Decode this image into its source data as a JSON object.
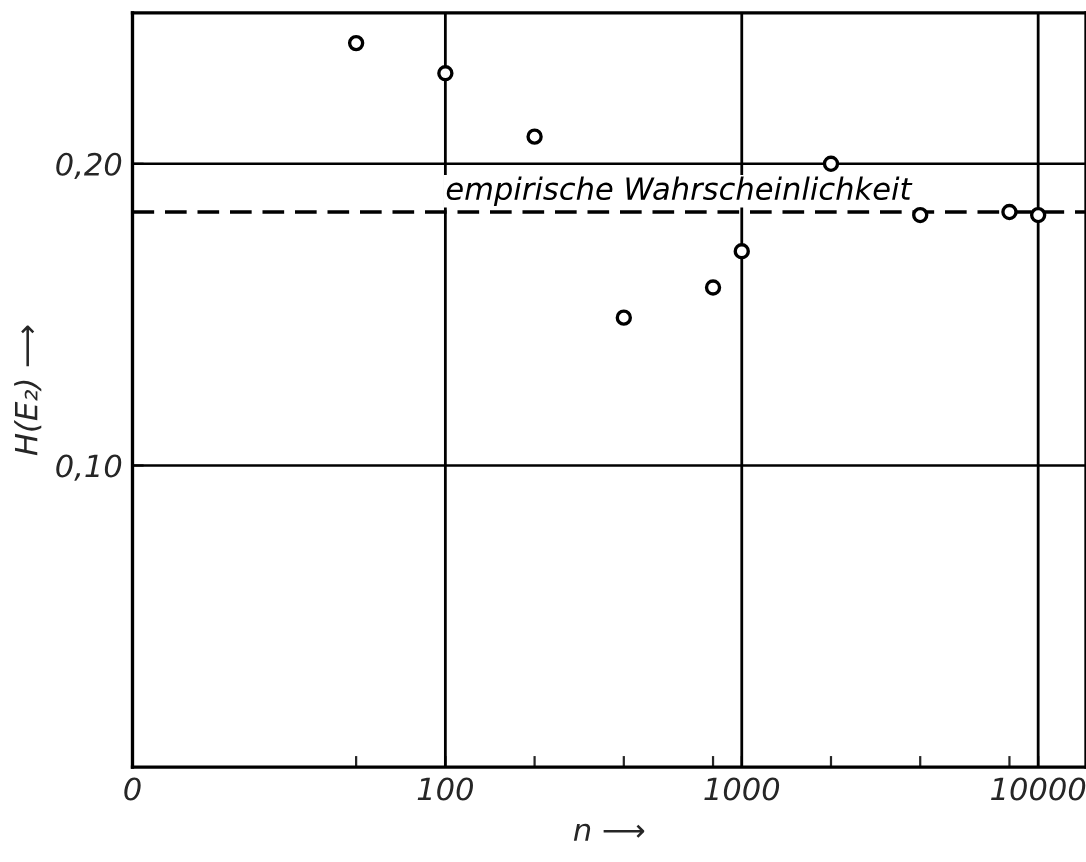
{
  "chart_data": {
    "type": "scatter",
    "xlabel": "n ⟶",
    "ylabel": "H(E₂) ⟶",
    "log": "x",
    "x": [
      50,
      100,
      200,
      400,
      800,
      1000,
      2000,
      4000,
      8000,
      10000
    ],
    "series": [
      {
        "color": "#000000",
        "values": [
          0.24,
          0.23,
          0.209,
          0.149,
          0.159,
          0.171,
          0.2,
          0.183,
          0.184,
          0.183
        ]
      }
    ],
    "marker": "circle",
    "xlim": [
      0,
      14500
    ],
    "ylim": [
      0,
      0.25
    ],
    "xticks": [
      0,
      {
        "value": 50,
        "label": null
      },
      100,
      {
        "value": 200,
        "label": null
      },
      {
        "value": 400,
        "label": null
      },
      {
        "value": 800,
        "label": null
      },
      1000,
      {
        "value": 2000,
        "label": null
      },
      {
        "value": 4000,
        "label": null
      },
      {
        "value": 8000,
        "label": null
      },
      10000
    ],
    "yticks": [
      {
        "value": 0.1,
        "label": "0,10"
      },
      {
        "value": 0.2,
        "label": "0,20"
      }
    ],
    "grid": true,
    "ref_lines": [
      {
        "axis": "y",
        "value": 0.184,
        "label": "empirische Wahrscheinlichkeit",
        "line_style": "dashed",
        "color": "#000000"
      }
    ]
  }
}
